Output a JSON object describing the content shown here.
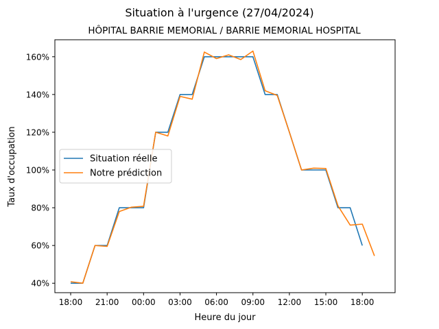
{
  "chart_data": {
    "type": "line",
    "title": "Situation à l'urgence (27/04/2024)",
    "subtitle": "HÔPITAL BARRIE MEMORIAL / BARRIE MEMORIAL HOSPITAL",
    "xlabel": "Heure du jour",
    "ylabel": "Taux d'occupation",
    "x_ticks": [
      "18:00",
      "21:00",
      "00:00",
      "03:00",
      "06:00",
      "09:00",
      "12:00",
      "15:00",
      "18:00"
    ],
    "y_ticks": [
      "40%",
      "60%",
      "80%",
      "100%",
      "120%",
      "140%",
      "160%"
    ],
    "xlim": [
      -1.3,
      26.7
    ],
    "ylim": [
      35,
      169
    ],
    "grid": false,
    "legend_position": "center-left",
    "x_hours_from_start": [
      0,
      1,
      2,
      3,
      4,
      5,
      6,
      7,
      8,
      9,
      10,
      11,
      12,
      13,
      14,
      15,
      16,
      17,
      18,
      19,
      20,
      21,
      22,
      23,
      24,
      25
    ],
    "series": [
      {
        "name": "Situation réelle",
        "color": "#1f77b4",
        "values": [
          40,
          40,
          60,
          60,
          80,
          80,
          80,
          120,
          120,
          140,
          140,
          160,
          160,
          160,
          160,
          160,
          140,
          140,
          120,
          100,
          100,
          100,
          80,
          80,
          60
        ]
      },
      {
        "name": "Notre prédiction",
        "color": "#ff7f0e",
        "values": [
          40.8,
          40,
          60,
          59.5,
          78,
          80.3,
          80.8,
          120,
          118,
          139,
          137.5,
          162.5,
          159,
          161,
          158.5,
          163,
          142,
          139.5,
          120,
          100,
          101,
          100.8,
          81,
          70.8,
          71.3,
          54.5
        ]
      }
    ]
  }
}
